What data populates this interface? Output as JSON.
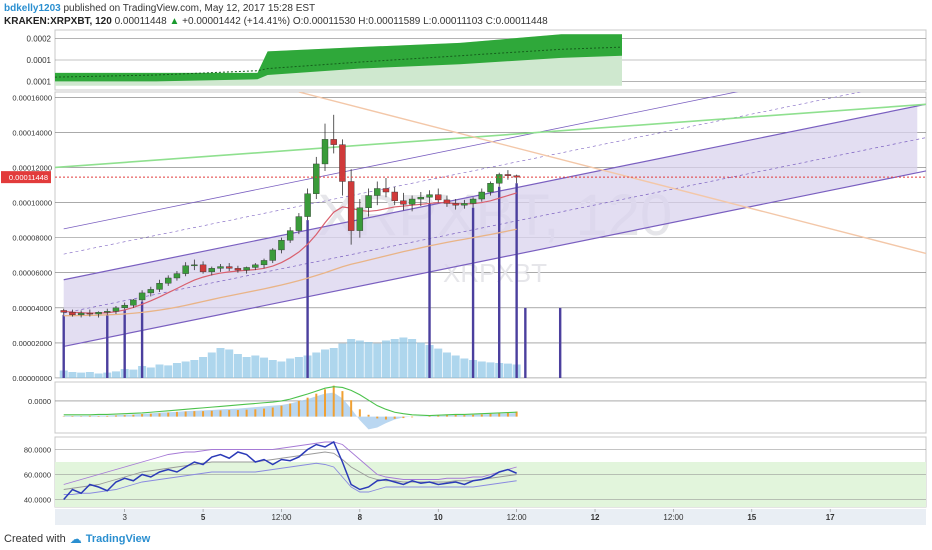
{
  "header": {
    "author": "bdkelly1203",
    "published": "published on TradingView.com, May 12, 2017 15:28 EST",
    "symbol": "KRAKEN:XRPXBT, 120",
    "last": "0.00011448",
    "change_arrow": "▲",
    "change": "+0.00001442 (+14.41%)",
    "open_label": "O:",
    "open": "0.00011530",
    "high_label": "H:",
    "high": "0.00011589",
    "low_label": "L:",
    "low": "0.00011103",
    "close_label": "C:",
    "close": "0.00011448"
  },
  "watermark": {
    "big": "XRPXBT, 120",
    "small": "XRPXBT"
  },
  "footer": {
    "created_with": "Created with",
    "brand": "TradingView"
  },
  "colors": {
    "up": "#3a9b3a",
    "down": "#d03a3a",
    "channel_fill": "#d9d3ee",
    "channel_line": "#7a5fc0",
    "vertical_marker": "#4b3f9e",
    "price_line": "#e23b3b",
    "green_trend": "#8fe08f",
    "orange_trend": "#f3c7a8",
    "volume": "#8cc4e6",
    "macd_hist": "#f0a033",
    "rsi": "#2b3ab8",
    "rsi_zone": "#e2f5dc",
    "top_fill": "#2fa83a"
  },
  "chart_data": [
    {
      "type": "area",
      "name": "top-indicator-panel",
      "yticks": [
        "0.0002",
        "0.0001",
        "0.0001"
      ],
      "x": [
        0,
        10,
        20,
        21,
        30,
        40,
        50,
        56
      ],
      "upper": [
        0.00012,
        0.00012,
        0.00012,
        0.00017,
        0.00018,
        0.00019,
        0.00021,
        0.00021
      ],
      "middle": [
        0.00011,
        0.000115,
        0.000125,
        0.00013,
        0.000145,
        0.00016,
        0.000175,
        0.00018
      ],
      "lower": [
        0.0001,
        0.0001,
        0.000105,
        0.000115,
        0.00013,
        0.00014,
        0.000155,
        0.00016
      ]
    },
    {
      "type": "candlestick",
      "name": "price",
      "ylim": [
        0.0,
        0.000163
      ],
      "yticks": [
        "0.00000000",
        "0.00002000",
        "0.00004000",
        "0.00006000",
        "0.00008000",
        "0.00010000",
        "0.00012000",
        "0.00014000",
        "0.00016000"
      ],
      "current_price_label": "0.00011448",
      "current_price": 0.00011448,
      "xticks": [
        {
          "label": "3",
          "x": 7
        },
        {
          "label": "5",
          "x": 16
        },
        {
          "label": "12:00",
          "x": 25
        },
        {
          "label": "8",
          "x": 34
        },
        {
          "label": "10",
          "x": 43
        },
        {
          "label": "12:00",
          "x": 52
        },
        {
          "label": "12",
          "x": 61
        },
        {
          "label": "12:00",
          "x": 70
        },
        {
          "label": "15",
          "x": 79
        },
        {
          "label": "17",
          "x": 88
        }
      ],
      "xlim": [
        -1,
        99
      ],
      "candles": [
        [
          3.85e-05,
          3.95e-05,
          3.6e-05,
          3.75e-05
        ],
        [
          3.75e-05,
          3.9e-05,
          3.5e-05,
          3.6e-05
        ],
        [
          3.6e-05,
          3.85e-05,
          3.45e-05,
          3.7e-05
        ],
        [
          3.7e-05,
          3.9e-05,
          3.5e-05,
          3.65e-05
        ],
        [
          3.65e-05,
          3.8e-05,
          3.45e-05,
          3.75e-05
        ],
        [
          3.75e-05,
          3.95e-05,
          3.6e-05,
          3.8e-05
        ],
        [
          3.8e-05,
          4.1e-05,
          3.65e-05,
          4e-05
        ],
        [
          4e-05,
          4.3e-05,
          3.9e-05,
          4.15e-05
        ],
        [
          4.15e-05,
          4.5e-05,
          4e-05,
          4.45e-05
        ],
        [
          4.45e-05,
          5e-05,
          4.35e-05,
          4.85e-05
        ],
        [
          4.85e-05,
          5.2e-05,
          4.65e-05,
          5.05e-05
        ],
        [
          5.05e-05,
          5.6e-05,
          4.9e-05,
          5.4e-05
        ],
        [
          5.4e-05,
          5.85e-05,
          5.25e-05,
          5.7e-05
        ],
        [
          5.7e-05,
          6.1e-05,
          5.55e-05,
          5.95e-05
        ],
        [
          5.95e-05,
          6.6e-05,
          5.8e-05,
          6.4e-05
        ],
        [
          6.4e-05,
          6.75e-05,
          6.15e-05,
          6.45e-05
        ],
        [
          6.45e-05,
          6.65e-05,
          5.95e-05,
          6.05e-05
        ],
        [
          6.05e-05,
          6.35e-05,
          5.85e-05,
          6.25e-05
        ],
        [
          6.25e-05,
          6.5e-05,
          6.05e-05,
          6.35e-05
        ],
        [
          6.35e-05,
          6.55e-05,
          6.1e-05,
          6.25e-05
        ],
        [
          6.25e-05,
          6.4e-05,
          6e-05,
          6.15e-05
        ],
        [
          6.15e-05,
          6.35e-05,
          5.95e-05,
          6.3e-05
        ],
        [
          6.3e-05,
          6.55e-05,
          6.15e-05,
          6.45e-05
        ],
        [
          6.45e-05,
          6.8e-05,
          6.25e-05,
          6.7e-05
        ],
        [
          6.7e-05,
          7.4e-05,
          6.55e-05,
          7.3e-05
        ],
        [
          7.3e-05,
          8e-05,
          7.1e-05,
          7.85e-05
        ],
        [
          7.85e-05,
          8.6e-05,
          7.7e-05,
          8.4e-05
        ],
        [
          8.4e-05,
          9.4e-05,
          8.2e-05,
          9.2e-05
        ],
        [
          9.2e-05,
          0.000108,
          9e-05,
          0.000105
        ],
        [
          0.000105,
          0.000126,
          0.000102,
          0.000122
        ],
        [
          0.000122,
          0.000145,
          0.000118,
          0.000136
        ],
        [
          0.000136,
          0.00015,
          0.000128,
          0.000133
        ],
        [
          0.000133,
          0.000136,
          0.000104,
          0.000112
        ],
        [
          0.000112,
          0.000119,
          7.6e-05,
          8.4e-05
        ],
        [
          8.4e-05,
          0.000102,
          8e-05,
          9.7e-05
        ],
        [
          9.7e-05,
          0.000108,
          9.2e-05,
          0.000104
        ],
        [
          0.000104,
          0.000112,
          9.85e-05,
          0.000108
        ],
        [
          0.000108,
          0.000114,
          0.000103,
          0.000106
        ],
        [
          0.000106,
          0.000109,
          9.85e-05,
          0.000101
        ],
        [
          0.000101,
          0.0001055,
          9.55e-05,
          9.9e-05
        ],
        [
          9.9e-05,
          0.000104,
          9.5e-05,
          0.000102
        ],
        [
          0.000102,
          0.000106,
          9.8e-05,
          0.000103
        ],
        [
          0.000103,
          0.000107,
          9.95e-05,
          0.0001045
        ],
        [
          0.0001045,
          0.000108,
          0.0001,
          0.0001015
        ],
        [
          0.0001015,
          0.000104,
          9.75e-05,
          9.95e-05
        ],
        [
          9.95e-05,
          0.000102,
          9.6e-05,
          9.85e-05
        ],
        [
          9.85e-05,
          0.0001015,
          9.65e-05,
          9.95e-05
        ],
        [
          9.95e-05,
          0.000103,
          9.7e-05,
          0.000102
        ],
        [
          0.000102,
          0.000108,
          0.0001005,
          0.000106
        ],
        [
          0.000106,
          0.000112,
          0.000104,
          0.000111
        ],
        [
          0.000111,
          0.000117,
          0.000109,
          0.000116
        ],
        [
          0.000116,
          0.0001185,
          0.000113,
          0.0001153
        ],
        [
          0.0001153,
          0.0001159,
          0.000111,
          0.0001145
        ]
      ],
      "ma_fast": [
        3.8e-05,
        3.75e-05,
        3.72e-05,
        3.7e-05,
        3.7e-05,
        3.72e-05,
        3.78e-05,
        3.88e-05,
        4.02e-05,
        4.2e-05,
        4.4e-05,
        4.62e-05,
        4.86e-05,
        5.1e-05,
        5.35e-05,
        5.58e-05,
        5.75e-05,
        5.88e-05,
        5.98e-05,
        6.05e-05,
        6.1e-05,
        6.14e-05,
        6.18e-05,
        6.25e-05,
        6.38e-05,
        6.58e-05,
        6.85e-05,
        7.18e-05,
        7.62e-05,
        8.18e-05,
        8.85e-05,
        9.45e-05,
        9.75e-05,
        9.68e-05,
        9.55e-05,
        9.5e-05,
        9.55e-05,
        9.65e-05,
        9.75e-05,
        9.8e-05,
        9.85e-05,
        9.9e-05,
        9.95e-05,
        0.0001,
        9.98e-05,
        9.94e-05,
        9.92e-05,
        9.94e-05,
        0.0001,
        0.000101,
        0.0001025,
        0.000104,
        0.0001055
      ],
      "ma_slow": [
        3.55e-05,
        3.55e-05,
        3.56e-05,
        3.57e-05,
        3.58e-05,
        3.6e-05,
        3.62e-05,
        3.65e-05,
        3.69e-05,
        3.74e-05,
        3.8e-05,
        3.87e-05,
        3.95e-05,
        4.04e-05,
        4.14e-05,
        4.25e-05,
        4.36e-05,
        4.47e-05,
        4.58e-05,
        4.68e-05,
        4.78e-05,
        4.88e-05,
        4.98e-05,
        5.08e-05,
        5.19e-05,
        5.3e-05,
        5.42e-05,
        5.55e-05,
        5.69e-05,
        5.84e-05,
        6e-05,
        6.17e-05,
        6.34e-05,
        6.48e-05,
        6.6e-05,
        6.72e-05,
        6.84e-05,
        6.96e-05,
        7.08e-05,
        7.2e-05,
        7.31e-05,
        7.42e-05,
        7.53e-05,
        7.63e-05,
        7.73e-05,
        7.82e-05,
        7.91e-05,
        8e-05,
        8.09e-05,
        8.18e-05,
        8.28e-05,
        8.38e-05,
        8.48e-05
      ],
      "volume": [
        2.5e-06,
        2e-06,
        1.8e-06,
        2e-06,
        1.5e-06,
        1.8e-06,
        2.2e-06,
        3e-06,
        2.8e-06,
        4e-06,
        3.5e-06,
        4.5e-06,
        4.2e-06,
        5e-06,
        5.5e-06,
        6e-06,
        7e-06,
        8.5e-06,
        1e-05,
        9.5e-06,
        8e-06,
        7e-06,
        7.5e-06,
        6.8e-06,
        6e-06,
        5.5e-06,
        6.5e-06,
        7e-06,
        7.5e-06,
        8.5e-06,
        9.5e-06,
        1e-05,
        1.15e-05,
        1.3e-05,
        1.25e-05,
        1.2e-05,
        1.15e-05,
        1.25e-05,
        1.3e-05,
        1.35e-05,
        1.3e-05,
        1.18e-05,
        1.1e-05,
        9.8e-06,
        8.5e-06,
        7.5e-06,
        6.5e-06,
        6e-06,
        5.5e-06,
        5.2e-06,
        5e-06,
        4.8e-06,
        4.5e-06
      ],
      "channel_mid": {
        "x": [
          0,
          98
        ],
        "y": [
          3.7e-05,
          0.000136
        ]
      },
      "green_trendline": {
        "x": [
          -1,
          99
        ],
        "y": [
          0.00012,
          0.000156
        ]
      },
      "orange_trendline": {
        "x": [
          27,
          99
        ],
        "y": [
          0.000163,
          7.1e-05
        ]
      },
      "vertical_markers_x": [
        0,
        5,
        7,
        9,
        28,
        42,
        47,
        50,
        52,
        53,
        57
      ]
    },
    {
      "type": "bar",
      "name": "macd",
      "yticks": [
        "0.0000"
      ],
      "histogram": [
        0.01,
        0.015,
        0.01,
        0.02,
        0.015,
        0.02,
        0.03,
        0.04,
        0.05,
        0.07,
        0.08,
        0.09,
        0.11,
        0.13,
        0.14,
        0.15,
        0.15,
        0.16,
        0.17,
        0.18,
        0.18,
        0.19,
        0.2,
        0.22,
        0.25,
        0.3,
        0.36,
        0.43,
        0.52,
        0.63,
        0.75,
        0.85,
        0.7,
        0.45,
        0.2,
        0.05,
        -0.05,
        -0.08,
        -0.06,
        -0.04,
        -0.02,
        0.0,
        0.02,
        0.04,
        0.06,
        0.05,
        0.04,
        0.05,
        0.06,
        0.08,
        0.1,
        0.12,
        0.14
      ],
      "signal": [
        0.05,
        0.05,
        0.05,
        0.05,
        0.06,
        0.06,
        0.07,
        0.08,
        0.09,
        0.1,
        0.12,
        0.14,
        0.16,
        0.18,
        0.2,
        0.22,
        0.24,
        0.26,
        0.28,
        0.3,
        0.32,
        0.34,
        0.36,
        0.38,
        0.4,
        0.43,
        0.48,
        0.55,
        0.62,
        0.7,
        0.78,
        0.82,
        0.8,
        0.72,
        0.6,
        0.45,
        0.3,
        0.2,
        0.12,
        0.08,
        0.05,
        0.04,
        0.03,
        0.04,
        0.05,
        0.06,
        0.06,
        0.07,
        0.08,
        0.09,
        0.1,
        0.11,
        0.12
      ],
      "signal_min": [
        0.02,
        0.02,
        0.02,
        0.02,
        0.03,
        0.03,
        0.04,
        0.05,
        0.06,
        0.07,
        0.09,
        0.11,
        0.12,
        0.13,
        0.15,
        0.16,
        0.17,
        0.18,
        0.2,
        0.21,
        0.22,
        0.24,
        0.26,
        0.28,
        0.3,
        0.32,
        0.36,
        0.42,
        0.48,
        0.56,
        0.63,
        0.66,
        0.5,
        0.22,
        -0.1,
        -0.35,
        -0.3,
        -0.18,
        -0.08,
        -0.02,
        0.0,
        0.01,
        0.01,
        0.02,
        0.03,
        0.04,
        0.04,
        0.05,
        0.06,
        0.07,
        0.08,
        0.09,
        0.1
      ]
    },
    {
      "type": "line",
      "name": "rsi",
      "ylim": [
        34,
        90
      ],
      "yticks": [
        "80.0000",
        "60.0000",
        "40.0000"
      ],
      "zone": [
        30,
        70
      ],
      "values": [
        40,
        48,
        45,
        52,
        50,
        47,
        54,
        57,
        55,
        60,
        58,
        62,
        64,
        62,
        66,
        70,
        68,
        74,
        76,
        73,
        78,
        76,
        70,
        72,
        68,
        72,
        71,
        74,
        80,
        84,
        82,
        86,
        70,
        52,
        48,
        50,
        55,
        56,
        54,
        52,
        55,
        53,
        54,
        52,
        53,
        54,
        52,
        55,
        56,
        58,
        62,
        64,
        61
      ],
      "band_upper": [
        52,
        54,
        56,
        58,
        60,
        62,
        64,
        66,
        68,
        70,
        72,
        74,
        76,
        77,
        78,
        78,
        79,
        80,
        80,
        80,
        80,
        80,
        80,
        80,
        80,
        81,
        82,
        83,
        84,
        85,
        86,
        86,
        84,
        78,
        72,
        66,
        60,
        58,
        57,
        56,
        56,
        56,
        56,
        56,
        57,
        57,
        57,
        58,
        58,
        60,
        62,
        64,
        66
      ],
      "band_mid": [
        48,
        49,
        50,
        51,
        52,
        54,
        56,
        58,
        60,
        62,
        63,
        64,
        65,
        66,
        67,
        68,
        69,
        70,
        70,
        70,
        70,
        70,
        70,
        71,
        72,
        73,
        74,
        75,
        76,
        77,
        78,
        77,
        72,
        66,
        62,
        58,
        56,
        55,
        55,
        54,
        54,
        54,
        54,
        54,
        54,
        55,
        55,
        55,
        56,
        57,
        58,
        59,
        60
      ],
      "band_lower": [
        44,
        44,
        45,
        45,
        46,
        47,
        48,
        50,
        52,
        54,
        55,
        56,
        57,
        58,
        59,
        60,
        61,
        62,
        62,
        62,
        62,
        62,
        62,
        63,
        64,
        65,
        66,
        67,
        68,
        69,
        68,
        66,
        58,
        50,
        46,
        46,
        48,
        50,
        50,
        50,
        50,
        50,
        50,
        50,
        50,
        50,
        50,
        50,
        51,
        52,
        53,
        54,
        55
      ]
    }
  ]
}
